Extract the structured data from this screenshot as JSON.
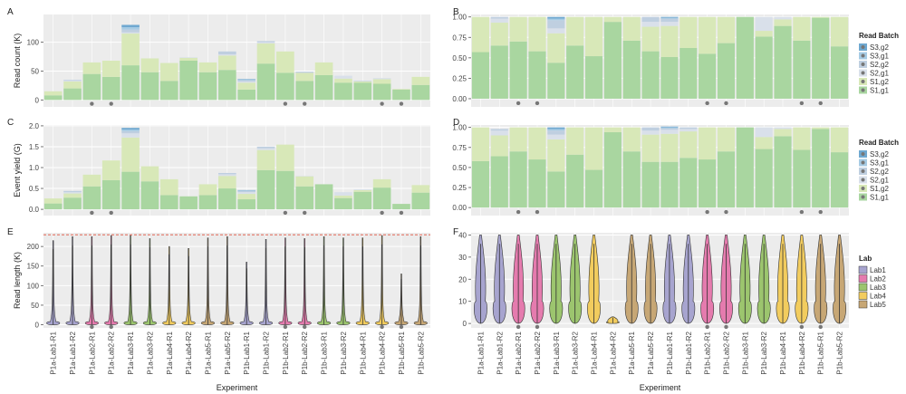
{
  "figure": {
    "panels": [
      "A",
      "B",
      "C",
      "D",
      "E",
      "F"
    ]
  },
  "colors": {
    "S3,g2": "#6FA8D0",
    "S3,g1": "#A6CBE4",
    "S2,g2": "#BFCFE0",
    "S2,g1": "#D9E0EA",
    "S1,g2": "#D8E8B8",
    "S1,g1": "#A9D6A0",
    "Lab1": "#A7A4CF",
    "Lab2": "#E57BAE",
    "Lab3": "#9CC56E",
    "Lab4": "#F2CC5E",
    "Lab5": "#C7A775",
    "panel_bg": "#ECECEC",
    "grid": "#FFFFFF",
    "dot": "#777777",
    "dashed_line": "#E0503C"
  },
  "chart_data": [
    {
      "panel": "A",
      "type": "bar",
      "stacked": true,
      "categories": [
        "P1a-Lab1-R1",
        "P1a-Lab1-R2",
        "P1a-Lab2-R1",
        "P1a-Lab2-R2",
        "P1a-Lab3-R1",
        "P1a-Lab3-R2",
        "P1a-Lab4-R1",
        "P1a-Lab4-R2",
        "P1a-Lab5-R1",
        "P1a-Lab5-R2",
        "P1b-Lab1-R1",
        "P1b-Lab1-R2",
        "P1b-Lab2-R1",
        "P1b-Lab2-R2",
        "P1b-Lab3-R1",
        "P1b-Lab3-R2",
        "P1b-Lab4-R1",
        "P1b-Lab4-R2",
        "P1b-Lab5-R1",
        "P1b-Lab5-R2"
      ],
      "series": [
        {
          "name": "S1,g1",
          "values": [
            8,
            20,
            45,
            40,
            60,
            48,
            33,
            68,
            48,
            52,
            18,
            63,
            47,
            33,
            43,
            30,
            30,
            28,
            18,
            26
          ]
        },
        {
          "name": "S1,g2",
          "values": [
            7,
            12,
            20,
            28,
            55,
            24,
            31,
            5,
            17,
            25,
            12,
            35,
            37,
            14,
            22,
            7,
            2,
            8,
            1,
            14
          ]
        },
        {
          "name": "S2,g1",
          "values": [
            0,
            2,
            0,
            0,
            2,
            0,
            0,
            1,
            0,
            2,
            2,
            2,
            0,
            0,
            0,
            5,
            0,
            2,
            0,
            0
          ]
        },
        {
          "name": "S2,g2",
          "values": [
            0,
            1,
            0,
            0,
            5,
            0,
            0,
            0,
            0,
            5,
            2,
            2,
            0,
            2,
            0,
            0,
            1,
            0,
            0,
            0
          ]
        },
        {
          "name": "S3,g1",
          "values": [
            0,
            0,
            0,
            0,
            4,
            0,
            0,
            0,
            0,
            0,
            1,
            0,
            0,
            0,
            0,
            0,
            0,
            0,
            0,
            0
          ]
        },
        {
          "name": "S3,g2",
          "values": [
            0,
            0,
            0,
            0,
            4,
            0,
            0,
            0,
            0,
            0,
            1,
            0,
            0,
            0,
            0,
            0,
            0,
            0,
            0,
            0
          ]
        }
      ],
      "ylabel": "Read count (K)",
      "ylim": [
        -12,
        148
      ],
      "yticks": [
        "0",
        "50",
        "100"
      ],
      "dots": [
        2,
        3,
        12,
        13,
        17,
        18
      ]
    },
    {
      "panel": "B",
      "type": "bar",
      "stacked": true,
      "categories": [
        "P1a-Lab1-R1",
        "P1a-Lab1-R2",
        "P1a-Lab2-R1",
        "P1a-Lab2-R2",
        "P1a-Lab3-R1",
        "P1a-Lab3-R2",
        "P1a-Lab4-R1",
        "P1a-Lab4-R2",
        "P1a-Lab5-R1",
        "P1a-Lab5-R2",
        "P1b-Lab1-R1",
        "P1b-Lab1-R2",
        "P1b-Lab2-R1",
        "P1b-Lab2-R2",
        "P1b-Lab3-R1",
        "P1b-Lab3-R2",
        "P1b-Lab4-R1",
        "P1b-Lab4-R2",
        "P1b-Lab5-R1",
        "P1b-Lab5-R2"
      ],
      "series": [
        {
          "name": "S1,g1",
          "values": [
            0.57,
            0.65,
            0.7,
            0.58,
            0.44,
            0.65,
            0.52,
            0.94,
            0.71,
            0.58,
            0.51,
            0.62,
            0.55,
            0.68,
            1.0,
            0.76,
            0.89,
            0.71,
            0.99,
            0.64
          ]
        },
        {
          "name": "S1,g2",
          "values": [
            0.43,
            0.28,
            0.3,
            0.42,
            0.36,
            0.35,
            0.48,
            0.06,
            0.29,
            0.3,
            0.38,
            0.38,
            0.45,
            0.32,
            0.0,
            0.07,
            0.08,
            0.29,
            0.01,
            0.36
          ]
        },
        {
          "name": "S2,g1",
          "values": [
            0.0,
            0.05,
            0.0,
            0.0,
            0.06,
            0.0,
            0.0,
            0.0,
            0.0,
            0.06,
            0.05,
            0.0,
            0.0,
            0.0,
            0.0,
            0.17,
            0.03,
            0.0,
            0.0,
            0.0
          ]
        },
        {
          "name": "S2,g2",
          "values": [
            0.0,
            0.02,
            0.0,
            0.0,
            0.1,
            0.0,
            0.0,
            0.0,
            0.0,
            0.06,
            0.04,
            0.0,
            0.0,
            0.0,
            0.0,
            0.0,
            0.0,
            0.0,
            0.0,
            0.0
          ]
        },
        {
          "name": "S3,g1",
          "values": [
            0.0,
            0.0,
            0.0,
            0.0,
            0.02,
            0.0,
            0.0,
            0.0,
            0.0,
            0.0,
            0.01,
            0.0,
            0.0,
            0.0,
            0.0,
            0.0,
            0.0,
            0.0,
            0.0,
            0.0
          ]
        },
        {
          "name": "S3,g2",
          "values": [
            0.0,
            0.0,
            0.0,
            0.0,
            0.02,
            0.0,
            0.0,
            0.0,
            0.0,
            0.0,
            0.01,
            0.0,
            0.0,
            0.0,
            0.0,
            0.0,
            0.0,
            0.0,
            0.0,
            0.0
          ]
        }
      ],
      "ylim": [
        -0.1,
        1.03
      ],
      "yticks": [
        "0.00",
        "0.25",
        "0.50",
        "0.75",
        "1.00"
      ],
      "dots": [
        2,
        3,
        12,
        13,
        17,
        18
      ],
      "legend": {
        "title": "Read Batch",
        "entries": [
          "S3,g2",
          "S3,g1",
          "S2,g2",
          "S2,g1",
          "S1,g2",
          "S1,g1"
        ]
      }
    },
    {
      "panel": "C",
      "type": "bar",
      "stacked": true,
      "categories": [
        "P1a-Lab1-R1",
        "P1a-Lab1-R2",
        "P1a-Lab2-R1",
        "P1a-Lab2-R2",
        "P1a-Lab3-R1",
        "P1a-Lab3-R2",
        "P1a-Lab4-R1",
        "P1a-Lab4-R2",
        "P1a-Lab5-R1",
        "P1a-Lab5-R2",
        "P1b-Lab1-R1",
        "P1b-Lab1-R2",
        "P1b-Lab2-R1",
        "P1b-Lab2-R2",
        "P1b-Lab3-R1",
        "P1b-Lab3-R2",
        "P1b-Lab4-R1",
        "P1b-Lab4-R2",
        "P1b-Lab5-R1",
        "P1b-Lab5-R2"
      ],
      "series": [
        {
          "name": "S1,g1",
          "values": [
            0.14,
            0.28,
            0.55,
            0.7,
            0.9,
            0.67,
            0.34,
            0.31,
            0.34,
            0.5,
            0.24,
            0.94,
            0.92,
            0.55,
            0.6,
            0.27,
            0.42,
            0.52,
            0.13,
            0.4
          ]
        },
        {
          "name": "S1,g2",
          "values": [
            0.12,
            0.1,
            0.28,
            0.47,
            0.82,
            0.36,
            0.38,
            0.0,
            0.26,
            0.3,
            0.13,
            0.48,
            0.63,
            0.24,
            0.0,
            0.06,
            0.04,
            0.2,
            0.0,
            0.18
          ]
        },
        {
          "name": "S2,g1",
          "values": [
            0.0,
            0.03,
            0.0,
            0.0,
            0.1,
            0.0,
            0.0,
            0.0,
            0.0,
            0.04,
            0.04,
            0.04,
            0.0,
            0.01,
            0.0,
            0.08,
            0.02,
            0.0,
            0.0,
            0.0
          ]
        },
        {
          "name": "S2,g2",
          "values": [
            0.0,
            0.03,
            0.0,
            0.0,
            0.05,
            0.0,
            0.0,
            0.0,
            0.0,
            0.03,
            0.03,
            0.04,
            0.0,
            0.0,
            0.0,
            0.0,
            0.0,
            0.0,
            0.0,
            0.0
          ]
        },
        {
          "name": "S3,g1",
          "values": [
            0.0,
            0.0,
            0.0,
            0.0,
            0.04,
            0.0,
            0.0,
            0.0,
            0.0,
            0.0,
            0.01,
            0.0,
            0.0,
            0.0,
            0.0,
            0.0,
            0.0,
            0.0,
            0.0,
            0.0
          ]
        },
        {
          "name": "S3,g2",
          "values": [
            0.0,
            0.0,
            0.0,
            0.0,
            0.04,
            0.0,
            0.0,
            0.0,
            0.0,
            0.0,
            0.01,
            0.0,
            0.0,
            0.0,
            0.0,
            0.0,
            0.0,
            0.0,
            0.0,
            0.0
          ]
        }
      ],
      "ylabel": "Event yield (G)",
      "ylim": [
        -0.15,
        2.02
      ],
      "yticks": [
        "0.0",
        "0.5",
        "1.0",
        "1.5",
        "2.0"
      ],
      "dots": [
        2,
        3,
        12,
        13,
        17,
        18
      ]
    },
    {
      "panel": "D",
      "type": "bar",
      "stacked": true,
      "categories": [
        "P1a-Lab1-R1",
        "P1a-Lab1-R2",
        "P1a-Lab2-R1",
        "P1a-Lab2-R2",
        "P1a-Lab3-R1",
        "P1a-Lab3-R2",
        "P1a-Lab4-R1",
        "P1a-Lab4-R2",
        "P1a-Lab5-R1",
        "P1a-Lab5-R2",
        "P1b-Lab1-R1",
        "P1b-Lab1-R2",
        "P1b-Lab2-R1",
        "P1b-Lab2-R2",
        "P1b-Lab3-R1",
        "P1b-Lab3-R2",
        "P1b-Lab4-R1",
        "P1b-Lab4-R2",
        "P1b-Lab5-R1",
        "P1b-Lab5-R2"
      ],
      "series": [
        {
          "name": "S1,g1",
          "values": [
            0.58,
            0.64,
            0.7,
            0.6,
            0.45,
            0.66,
            0.47,
            0.94,
            0.7,
            0.57,
            0.57,
            0.62,
            0.6,
            0.7,
            1.0,
            0.73,
            0.89,
            0.72,
            0.98,
            0.69
          ]
        },
        {
          "name": "S1,g2",
          "values": [
            0.42,
            0.26,
            0.3,
            0.4,
            0.4,
            0.34,
            0.53,
            0.06,
            0.3,
            0.34,
            0.35,
            0.33,
            0.4,
            0.3,
            0.0,
            0.15,
            0.09,
            0.28,
            0.02,
            0.31
          ]
        },
        {
          "name": "S2,g1",
          "values": [
            0.0,
            0.06,
            0.0,
            0.0,
            0.06,
            0.0,
            0.0,
            0.0,
            0.0,
            0.05,
            0.05,
            0.03,
            0.0,
            0.0,
            0.0,
            0.12,
            0.02,
            0.0,
            0.0,
            0.0
          ]
        },
        {
          "name": "S2,g2",
          "values": [
            0.0,
            0.02,
            0.0,
            0.0,
            0.05,
            0.0,
            0.0,
            0.0,
            0.0,
            0.04,
            0.02,
            0.02,
            0.0,
            0.0,
            0.0,
            0.0,
            0.0,
            0.0,
            0.0,
            0.0
          ]
        },
        {
          "name": "S3,g1",
          "values": [
            0.0,
            0.0,
            0.0,
            0.0,
            0.02,
            0.0,
            0.0,
            0.0,
            0.0,
            0.0,
            0.01,
            0.0,
            0.0,
            0.0,
            0.0,
            0.0,
            0.0,
            0.0,
            0.0,
            0.0
          ]
        },
        {
          "name": "S3,g2",
          "values": [
            0.0,
            0.0,
            0.0,
            0.0,
            0.02,
            0.0,
            0.0,
            0.0,
            0.0,
            0.0,
            0.01,
            0.0,
            0.0,
            0.0,
            0.0,
            0.0,
            0.0,
            0.0,
            0.0,
            0.0
          ]
        }
      ],
      "ylim": [
        -0.1,
        1.03
      ],
      "yticks": [
        "0.00",
        "0.25",
        "0.50",
        "0.75",
        "1.00"
      ],
      "dots": [
        2,
        3,
        12,
        13,
        17,
        18
      ],
      "legend": {
        "title": "Read Batch",
        "entries": [
          "S3,g2",
          "S3,g1",
          "S2,g2",
          "S2,g1",
          "S1,g2",
          "S1,g1"
        ]
      }
    },
    {
      "panel": "E",
      "type": "violin",
      "categories": [
        "P1a-Lab1-R1",
        "P1a-Lab1-R2",
        "P1a-Lab2-R1",
        "P1a-Lab2-R2",
        "P1a-Lab3-R1",
        "P1a-Lab3-R2",
        "P1a-Lab4-R1",
        "P1a-Lab4-R2",
        "P1a-Lab5-R1",
        "P1a-Lab5-R2",
        "P1b-Lab1-R1",
        "P1b-Lab1-R2",
        "P1b-Lab2-R1",
        "P1b-Lab2-R2",
        "P1b-Lab3-R1",
        "P1b-Lab3-R2",
        "P1b-Lab4-R1",
        "P1b-Lab4-R2",
        "P1b-Lab5-R1",
        "P1b-Lab5-R2"
      ],
      "labs": [
        "Lab1",
        "Lab1",
        "Lab2",
        "Lab2",
        "Lab3",
        "Lab3",
        "Lab4",
        "Lab4",
        "Lab5",
        "Lab5",
        "Lab1",
        "Lab1",
        "Lab2",
        "Lab2",
        "Lab3",
        "Lab3",
        "Lab4",
        "Lab4",
        "Lab5",
        "Lab5"
      ],
      "max_values": [
        215,
        225,
        225,
        228,
        228,
        220,
        200,
        195,
        222,
        225,
        160,
        218,
        222,
        220,
        225,
        222,
        222,
        228,
        130,
        225
      ],
      "dots": [
        2,
        3,
        12,
        13,
        17,
        18
      ],
      "xlabel": "Experiment",
      "ylabel": "Read length (K)",
      "ylim": [
        -8,
        235
      ],
      "yticks": [
        "0",
        "50",
        "100",
        "150",
        "200"
      ],
      "reference_line": 230
    },
    {
      "panel": "F",
      "type": "violin",
      "categories": [
        "P1a-Lab1-R1",
        "P1a-Lab1-R2",
        "P1a-Lab2-R1",
        "P1a-Lab2-R2",
        "P1a-Lab3-R1",
        "P1a-Lab3-R2",
        "P1a-Lab4-R1",
        "P1a-Lab4-R2",
        "P1a-Lab5-R1",
        "P1a-Lab5-R2",
        "P1b-Lab1-R1",
        "P1b-Lab1-R2",
        "P1b-Lab2-R1",
        "P1b-Lab2-R2",
        "P1b-Lab3-R1",
        "P1b-Lab3-R2",
        "P1b-Lab4-R1",
        "P1b-Lab4-R2",
        "P1b-Lab5-R1",
        "P1b-Lab5-R2"
      ],
      "labs": [
        "Lab1",
        "Lab1",
        "Lab2",
        "Lab2",
        "Lab3",
        "Lab3",
        "Lab4",
        "Lab4",
        "Lab5",
        "Lab5",
        "Lab1",
        "Lab1",
        "Lab2",
        "Lab2",
        "Lab3",
        "Lab3",
        "Lab4",
        "Lab4",
        "Lab5",
        "Lab5"
      ],
      "max_values": [
        40,
        40,
        40,
        40,
        40,
        40,
        40,
        3,
        40,
        40,
        40,
        40,
        40,
        40,
        40,
        40,
        40,
        40,
        40,
        40
      ],
      "dots": [
        2,
        3,
        12,
        13,
        17,
        18
      ],
      "xlabel": "Experiment",
      "ylim": [
        -2,
        41
      ],
      "yticks": [
        "0",
        "10",
        "20",
        "30",
        "40"
      ],
      "legend": {
        "title": "Lab",
        "entries": [
          "Lab1",
          "Lab2",
          "Lab3",
          "Lab4",
          "Lab5"
        ]
      }
    }
  ]
}
